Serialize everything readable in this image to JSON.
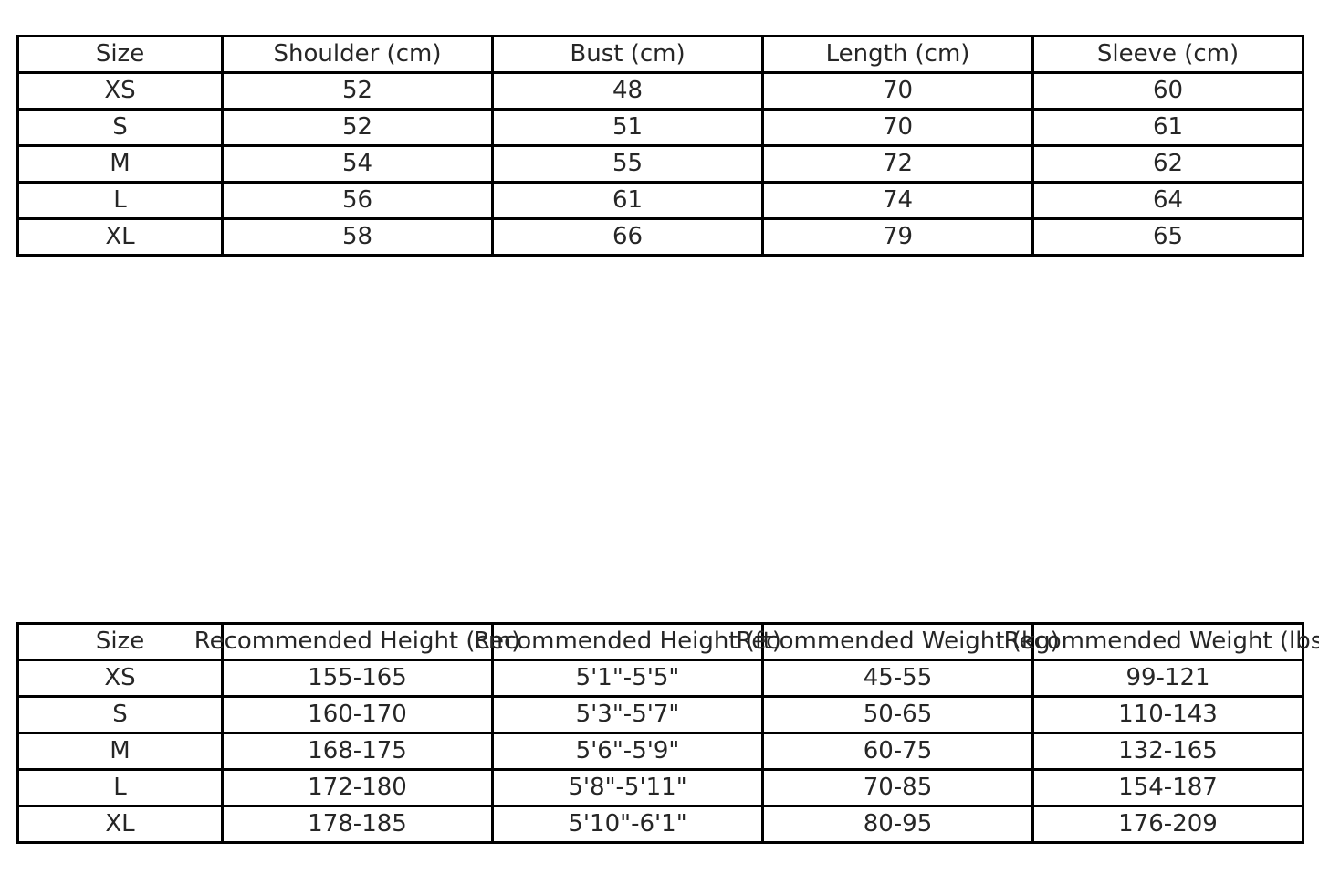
{
  "page": {
    "background_color": "#ffffff",
    "text_color": "#262626",
    "border_color": "#000000"
  },
  "chart_data": [
    {
      "type": "table",
      "name": "garment-size-chart",
      "columns": [
        "Size",
        "Shoulder (cm)",
        "Bust (cm)",
        "Length (cm)",
        "Sleeve (cm)"
      ],
      "rows": [
        [
          "XS",
          "52",
          "48",
          "70",
          "60"
        ],
        [
          "S",
          "52",
          "51",
          "70",
          "61"
        ],
        [
          "M",
          "54",
          "55",
          "72",
          "62"
        ],
        [
          "L",
          "56",
          "61",
          "74",
          "64"
        ],
        [
          "XL",
          "58",
          "66",
          "79",
          "65"
        ]
      ]
    },
    {
      "type": "table",
      "name": "recommended-fit-guide",
      "columns": [
        "Size",
        "Recommended Height (cm)",
        "Recommended Height (ft)",
        "Recommended Weight (kg)",
        "Recommended Weight (lbs)"
      ],
      "rows": [
        [
          "XS",
          "155-165",
          "5'1\"-5'5\"",
          "45-55",
          "99-121"
        ],
        [
          "S",
          "160-170",
          "5'3\"-5'7\"",
          "50-65",
          "110-143"
        ],
        [
          "M",
          "168-175",
          "5'6\"-5'9\"",
          "60-75",
          "132-165"
        ],
        [
          "L",
          "172-180",
          "5'8\"-5'11\"",
          "70-85",
          "154-187"
        ],
        [
          "XL",
          "178-185",
          "5'10\"-6'1\"",
          "80-95",
          "176-209"
        ]
      ]
    }
  ]
}
